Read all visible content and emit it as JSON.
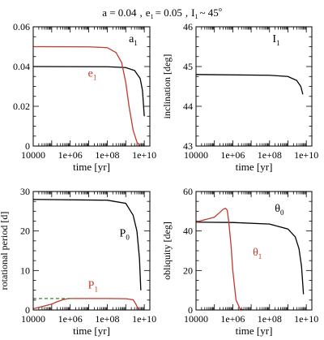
{
  "figure_title": {
    "a": "a = 0.04",
    "sep1": ",",
    "e": "e",
    "e_sub": "1",
    "e_val": "= 0.05",
    "sep2": ",",
    "I": "I",
    "I_sub": "1",
    "I_val": "~ 45",
    "I_sup": "o"
  },
  "chart_data": [
    {
      "type": "line",
      "xlabel": "time  [yr]",
      "ylabel": "",
      "xscale": "log",
      "xlim": [
        10000,
        20000000000
      ],
      "ylim": [
        0,
        0.06
      ],
      "xticks": [
        "10000",
        "1e+06",
        "1e+08",
        "1e+10"
      ],
      "yticks": [
        "0",
        "0.02",
        "0.04",
        "0.06"
      ],
      "series": [
        {
          "name": "a",
          "sub": "1",
          "color": "#000000",
          "x": [
            10000,
            100000000,
            1000000000,
            3000000000,
            6000000000,
            8000000000,
            10000000000
          ],
          "y": [
            0.04,
            0.0399,
            0.0395,
            0.038,
            0.034,
            0.028,
            0.015
          ]
        },
        {
          "name": "e",
          "sub": "1",
          "color": "#c0392b",
          "x": [
            10000,
            10000000,
            100000000,
            300000000,
            600000000,
            1000000000,
            1500000000,
            2500000000,
            4000000000,
            6000000000
          ],
          "y": [
            0.05,
            0.0499,
            0.0495,
            0.047,
            0.042,
            0.032,
            0.02,
            0.008,
            0.002,
            0.0
          ]
        }
      ]
    },
    {
      "type": "line",
      "xlabel": "time  [yr]",
      "ylabel": "inclination  [deg]",
      "xscale": "log",
      "xlim": [
        10000,
        20000000000
      ],
      "ylim": [
        43,
        46
      ],
      "xticks": [
        "10000",
        "1e+06",
        "1e+08",
        "1e+10"
      ],
      "yticks": [
        "43",
        "44",
        "45",
        "46"
      ],
      "series": [
        {
          "name": "I",
          "sub": "1",
          "color": "#000000",
          "x": [
            10000,
            100000000,
            1000000000,
            3000000000,
            5000000000,
            6500000000
          ],
          "y": [
            44.8,
            44.78,
            44.75,
            44.65,
            44.5,
            44.3
          ]
        }
      ]
    },
    {
      "type": "line",
      "xlabel": "time  [yr]",
      "ylabel": "rotational period [d]",
      "xscale": "log",
      "xlim": [
        10000,
        20000000000
      ],
      "ylim": [
        0,
        30
      ],
      "xticks": [
        "10000",
        "1e+06",
        "1e+08",
        "1e+10"
      ],
      "yticks": [
        "0",
        "10",
        "20",
        "30"
      ],
      "series": [
        {
          "name": "P",
          "sub": "0",
          "color": "#000000",
          "x": [
            10000,
            100000000,
            1000000000,
            2500000000,
            4000000000,
            5500000000,
            6500000000
          ],
          "y": [
            28,
            27.8,
            27,
            24,
            20,
            13,
            5
          ]
        },
        {
          "name": "P",
          "sub": "1",
          "color": "#c0392b",
          "x": [
            10000,
            100000,
            200000,
            400000,
            700000,
            1000000,
            3000000,
            100000000,
            1000000000,
            2500000000,
            3500000000,
            5000000000
          ],
          "y": [
            0.3,
            1.5,
            2.1,
            2.6,
            2.85,
            2.9,
            2.9,
            2.9,
            2.85,
            2.6,
            1.5,
            0
          ]
        },
        {
          "name": "",
          "sub": "",
          "color": "#2e8b2e",
          "dash": true,
          "x": [
            10000,
            1000000
          ],
          "y": [
            2.9,
            2.9
          ]
        }
      ]
    },
    {
      "type": "line",
      "xlabel": "time  [yr]",
      "ylabel": "obliquity  [deg]",
      "xscale": "log",
      "xlim": [
        10000,
        20000000000
      ],
      "ylim": [
        0,
        60
      ],
      "xticks": [
        "10000",
        "1e+06",
        "1e+08",
        "1e+10"
      ],
      "yticks": [
        "0",
        "20",
        "40",
        "60"
      ],
      "series": [
        {
          "name": "θ",
          "sub": "0",
          "color": "#000000",
          "x": [
            10000,
            1000000,
            100000000,
            1000000000,
            2500000000,
            4000000000,
            5500000000,
            7000000000
          ],
          "y": [
            44.5,
            44.3,
            43.5,
            41,
            37,
            31,
            22,
            8
          ]
        },
        {
          "name": "θ",
          "sub": "1",
          "color": "#c0392b",
          "x": [
            10000,
            100000,
            200000,
            300000,
            400000,
            500000,
            600000,
            800000,
            1000000,
            1500000,
            2500000,
            4000000
          ],
          "y": [
            44.5,
            47,
            49.5,
            51,
            51.5,
            50.5,
            45,
            33,
            20,
            5,
            0.5,
            0
          ]
        }
      ]
    }
  ]
}
